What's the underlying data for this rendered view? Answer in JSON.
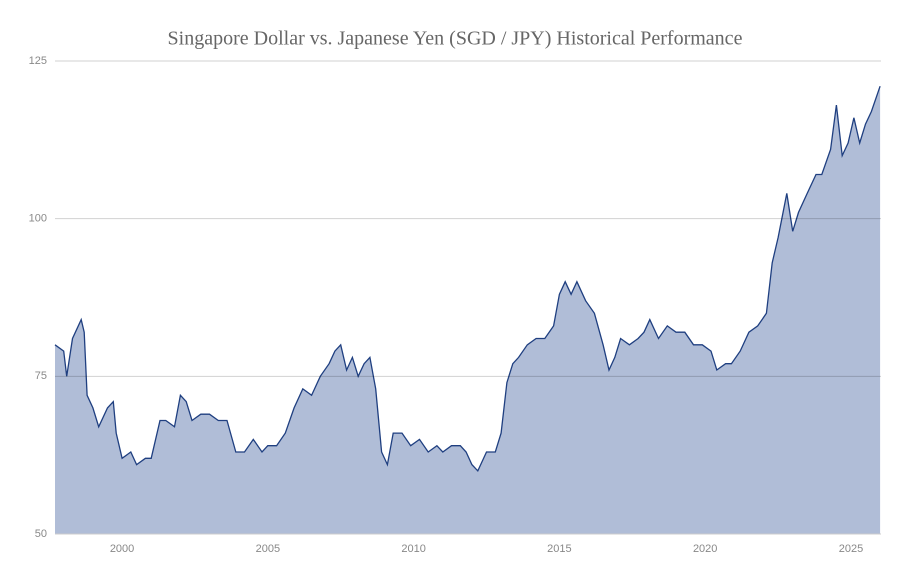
{
  "chart_data": {
    "type": "area",
    "title": "Singapore Dollar vs. Japanese Yen (SGD / JPY) Historical Performance",
    "x": [
      1997.7,
      1998.0,
      1998.1,
      1998.3,
      1998.6,
      1998.7,
      1998.8,
      1999.0,
      1999.2,
      1999.5,
      1999.7,
      1999.8,
      2000.0,
      2000.3,
      2000.5,
      2000.8,
      2001.0,
      2001.3,
      2001.5,
      2001.8,
      2002.0,
      2002.2,
      2002.4,
      2002.7,
      2003.0,
      2003.3,
      2003.6,
      2003.9,
      2004.2,
      2004.5,
      2004.8,
      2005.0,
      2005.3,
      2005.6,
      2005.9,
      2006.2,
      2006.5,
      2006.8,
      2007.1,
      2007.3,
      2007.5,
      2007.7,
      2007.9,
      2008.1,
      2008.3,
      2008.5,
      2008.7,
      2008.9,
      2009.1,
      2009.3,
      2009.6,
      2009.9,
      2010.2,
      2010.5,
      2010.8,
      2011.0,
      2011.3,
      2011.6,
      2011.8,
      2012.0,
      2012.2,
      2012.5,
      2012.8,
      2013.0,
      2013.2,
      2013.4,
      2013.6,
      2013.9,
      2014.2,
      2014.5,
      2014.8,
      2015.0,
      2015.2,
      2015.4,
      2015.6,
      2015.9,
      2016.2,
      2016.5,
      2016.7,
      2016.9,
      2017.1,
      2017.4,
      2017.7,
      2017.9,
      2018.1,
      2018.4,
      2018.7,
      2019.0,
      2019.3,
      2019.6,
      2019.9,
      2020.2,
      2020.4,
      2020.7,
      2020.9,
      2021.2,
      2021.5,
      2021.8,
      2022.1,
      2022.3,
      2022.5,
      2022.8,
      2023.0,
      2023.2,
      2023.5,
      2023.8,
      2024.0,
      2024.3,
      2024.5,
      2024.7,
      2024.9,
      2025.1,
      2025.3,
      2025.5,
      2025.7,
      2026.0
    ],
    "series": [
      {
        "name": "SGD / JPY",
        "color": "#1f3f80",
        "fill": "#b0bdd7",
        "values": [
          80,
          79,
          75,
          81,
          84,
          82,
          72,
          70,
          67,
          70,
          71,
          66,
          62,
          63,
          61,
          62,
          62,
          68,
          68,
          67,
          72,
          71,
          68,
          69,
          69,
          68,
          68,
          63,
          63,
          65,
          63,
          64,
          64,
          66,
          70,
          73,
          72,
          75,
          77,
          79,
          80,
          76,
          78,
          75,
          77,
          78,
          73,
          63,
          61,
          66,
          66,
          64,
          65,
          63,
          64,
          63,
          64,
          64,
          63,
          61,
          60,
          63,
          63,
          66,
          74,
          77,
          78,
          80,
          81,
          81,
          83,
          88,
          90,
          88,
          90,
          87,
          85,
          80,
          76,
          78,
          81,
          80,
          81,
          82,
          84,
          81,
          83,
          82,
          82,
          80,
          80,
          79,
          76,
          77,
          77,
          79,
          82,
          83,
          85,
          93,
          97,
          104,
          98,
          101,
          104,
          107,
          107,
          111,
          118,
          110,
          112,
          116,
          112,
          115,
          117,
          121
        ]
      }
    ],
    "xlim": [
      1997.7,
      2026.03
    ],
    "xticks": [
      2000,
      2005,
      2010,
      2015,
      2020,
      2025
    ],
    "ylim": [
      50,
      125
    ],
    "yticks": [
      50,
      75,
      100,
      125
    ],
    "grid": true
  }
}
